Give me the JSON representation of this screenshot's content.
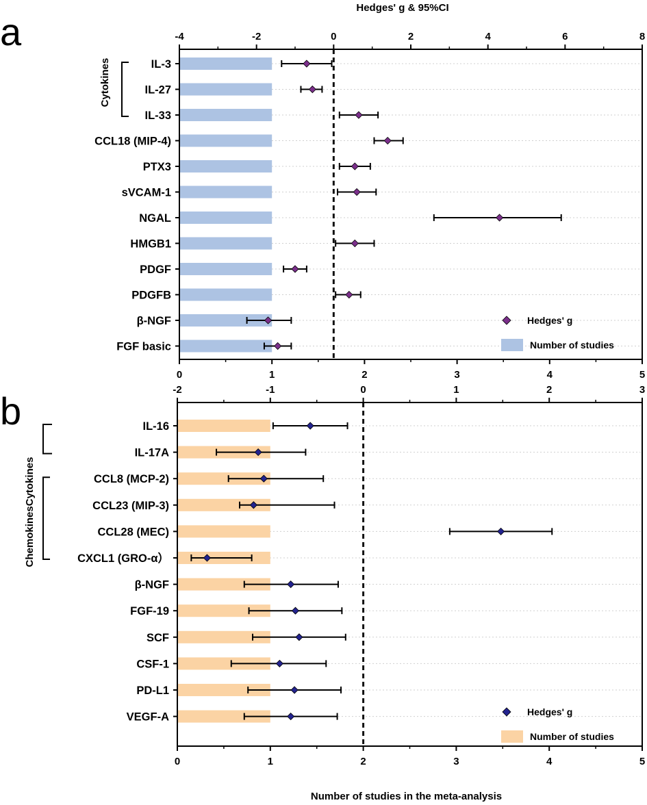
{
  "chart_data": [
    {
      "panel_label": "a",
      "type": "bar",
      "orientation": "horizontal",
      "title": "",
      "categories": [
        "IL-3",
        "IL-27",
        "IL-33",
        "CCL18 (MIP-4)",
        "PTX3",
        "sVCAM-1",
        "NGAL",
        "HMGB1",
        "PDGF",
        "PDGFB",
        "β-NGF",
        "FGF basic"
      ],
      "top_axis": {
        "label": "Hedges' g  & 95%CI",
        "range": [
          -4,
          8
        ],
        "ticks": [
          "-4",
          "-2",
          "0",
          "2",
          "4",
          "6",
          "8"
        ]
      },
      "bottom_axis": {
        "label": "",
        "range": [
          0,
          5
        ],
        "ticks": [
          "0",
          "1",
          "2",
          "3",
          "4",
          "5"
        ]
      },
      "series": [
        {
          "name": "Number of studies",
          "type": "bar",
          "color": "#adc3e3",
          "values": [
            1,
            1,
            1,
            1,
            1,
            1,
            1,
            1,
            1,
            1,
            1,
            1
          ]
        },
        {
          "name": "Hedges' g",
          "type": "scatter",
          "color": "#7b2f8b",
          "values": [
            -0.7,
            -0.55,
            0.65,
            1.4,
            0.55,
            0.6,
            4.3,
            0.55,
            -1.0,
            0.4,
            -1.7,
            -1.45
          ],
          "ci_low": [
            -1.35,
            -0.85,
            0.15,
            1.05,
            0.15,
            0.1,
            2.6,
            0.05,
            -1.3,
            0.05,
            -2.25,
            -1.8
          ],
          "ci_high": [
            -0.05,
            -0.3,
            1.15,
            1.8,
            0.95,
            1.1,
            5.9,
            1.05,
            -0.7,
            0.7,
            -1.1,
            -1.1
          ]
        }
      ],
      "groups": [
        {
          "label": "Cytokines",
          "from": "IL-3",
          "to": "IL-33"
        }
      ],
      "reference_line": 0,
      "grid": true,
      "legend_position": "bottom-right"
    },
    {
      "panel_label": "b",
      "type": "bar",
      "orientation": "horizontal",
      "title": "",
      "categories": [
        "IL-16",
        "IL-17A",
        "CCL8 (MCP-2)",
        "CCL23 (MIP-3)",
        "CCL28 (MEC)",
        "CXCL1 (GRO-α）",
        "β-NGF",
        "FGF-19",
        "SCF",
        "CSF-1",
        "PD-L1",
        "VEGF-A"
      ],
      "top_axis": {
        "label": "",
        "range": [
          -2,
          3
        ],
        "ticks": [
          "-2",
          "-1",
          "0",
          "1",
          "2",
          "3"
        ]
      },
      "bottom_axis": {
        "label": "Number of studies in the meta-analysis",
        "range": [
          0,
          5
        ],
        "ticks": [
          "0",
          "1",
          "2",
          "3",
          "4",
          "5"
        ]
      },
      "series": [
        {
          "name": "Number of studies",
          "type": "bar",
          "color": "#fbd3a4",
          "values": [
            1,
            1,
            1,
            1,
            1,
            1,
            1,
            1,
            1,
            1,
            1,
            1
          ]
        },
        {
          "name": "Hedges' g",
          "type": "scatter",
          "color": "#23238f",
          "values": [
            -0.57,
            -1.13,
            -1.07,
            -1.18,
            1.48,
            -1.68,
            -0.78,
            -0.73,
            -0.69,
            -0.9,
            -0.74,
            -0.78
          ],
          "ci_low": [
            -0.97,
            -1.58,
            -1.45,
            -1.33,
            0.93,
            -1.85,
            -1.28,
            -1.23,
            -1.19,
            -1.42,
            -1.24,
            -1.28
          ],
          "ci_high": [
            -0.17,
            -0.62,
            -0.43,
            -0.31,
            2.03,
            -1.2,
            -0.27,
            -0.23,
            -0.19,
            -0.4,
            -0.24,
            -0.28
          ]
        }
      ],
      "groups": [
        {
          "label": "Cytokines",
          "from": "IL-16",
          "to": "IL-17A"
        },
        {
          "label": "Chemokines",
          "from": "CCL8 (MCP-2)",
          "to": "CXCL1 (GRO-α）"
        }
      ],
      "reference_line": 0,
      "grid": true,
      "legend_position": "bottom-right"
    }
  ]
}
